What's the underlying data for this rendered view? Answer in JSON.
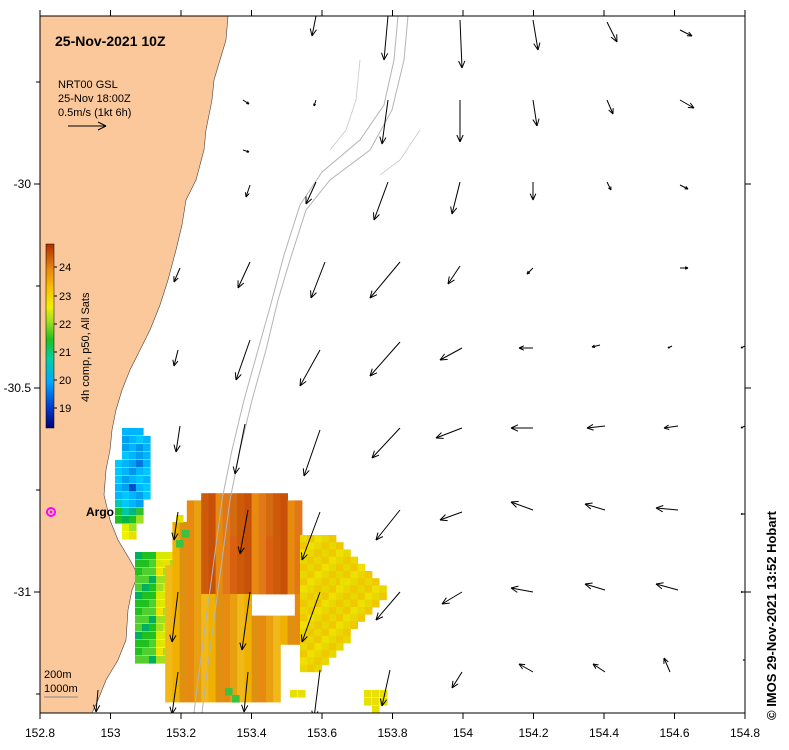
{
  "map": {
    "title": "25-Nov-2021 10Z",
    "info_lines": [
      "NRT00 GSL",
      "25-Nov 18:00Z",
      "0.5m/s (1kt 6h)"
    ],
    "x_ticks": [
      "152.8",
      "153",
      "153.2",
      "153.4",
      "153.6",
      "153.8",
      "154",
      "154.2",
      "154.4",
      "154.6",
      "154.8"
    ],
    "y_ticks": [
      "-30",
      "-30.5",
      "-31"
    ],
    "colorbar": {
      "label": "4h comp, p50, All Sats",
      "ticks": [
        "24",
        "23",
        "22",
        "21",
        "20",
        "19"
      ]
    },
    "argo_label": "Argo",
    "depth_labels": [
      "200m",
      "1000m"
    ],
    "credit": "© IMOS 29-Nov-2021 13:52 Hobart",
    "colors": {
      "land": "#fac89b",
      "argo_marker": "#ff00ff",
      "contour": "#b4b4b4",
      "frame": "#000000"
    }
  }
}
